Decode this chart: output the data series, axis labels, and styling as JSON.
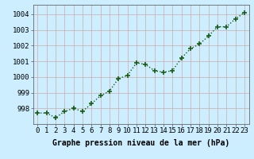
{
  "x": [
    0,
    1,
    2,
    3,
    4,
    5,
    6,
    7,
    8,
    9,
    10,
    11,
    12,
    13,
    14,
    15,
    16,
    17,
    18,
    19,
    20,
    21,
    22,
    23
  ],
  "y": [
    997.7,
    997.7,
    997.4,
    997.8,
    998.0,
    997.8,
    998.3,
    998.8,
    999.1,
    999.9,
    1000.1,
    1000.9,
    1000.8,
    1000.4,
    1000.3,
    1000.4,
    1001.2,
    1001.8,
    1002.1,
    1002.6,
    1003.2,
    1003.2,
    1003.7,
    1004.1
  ],
  "line_color": "#1a5c1a",
  "marker": "+",
  "marker_size": 5,
  "bg_color": "#cceeff",
  "grid_color_major": "#ccaaaa",
  "grid_color_minor": "#ddcccc",
  "xlabel": "Graphe pression niveau de la mer (hPa)",
  "xlabel_fontsize": 7,
  "xtick_labels": [
    "0",
    "1",
    "2",
    "3",
    "4",
    "5",
    "6",
    "7",
    "8",
    "9",
    "10",
    "11",
    "12",
    "13",
    "14",
    "15",
    "16",
    "17",
    "18",
    "19",
    "20",
    "21",
    "22",
    "23"
  ],
  "ytick_values": [
    998,
    999,
    1000,
    1001,
    1002,
    1003,
    1004
  ],
  "ylim": [
    997.0,
    1004.6
  ],
  "xlim": [
    -0.5,
    23.5
  ],
  "tick_fontsize": 6.5,
  "line_width": 1.0
}
